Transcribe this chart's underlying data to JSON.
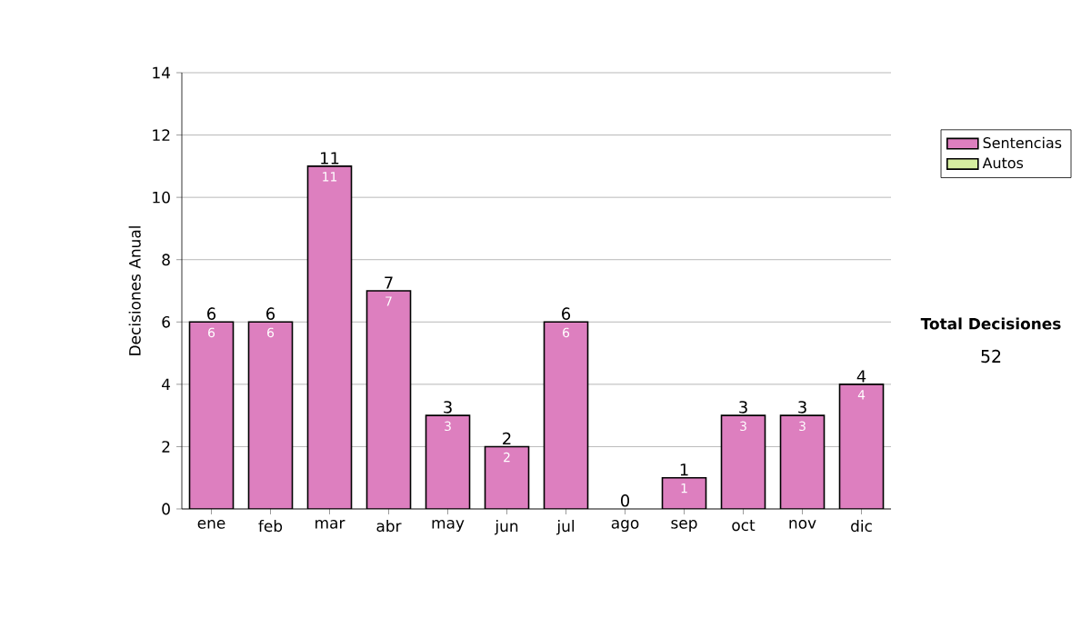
{
  "chart_data": {
    "type": "bar",
    "stacked": true,
    "ylabel": "Decisiones Anual",
    "categories": [
      "ene",
      "feb",
      "mar",
      "abr",
      "may",
      "jun",
      "jul",
      "ago",
      "sep",
      "oct",
      "nov",
      "dic"
    ],
    "series": [
      {
        "name": "Sentencias",
        "color": "#dd7fbf",
        "values": [
          6,
          6,
          11,
          7,
          3,
          2,
          6,
          0,
          1,
          3,
          3,
          4
        ],
        "value_labels": [
          "6",
          "6",
          "11",
          "7",
          "3",
          "2",
          "6",
          null,
          "1",
          "3",
          "3",
          "4"
        ]
      },
      {
        "name": "Autos",
        "color": "#d6eea0",
        "values": [
          0,
          0,
          0,
          0,
          0,
          0,
          0,
          0,
          0,
          0,
          0,
          0
        ]
      }
    ],
    "totals": [
      "6",
      "6",
      "11",
      "7",
      "3",
      "2",
      "6",
      "0",
      "1",
      "3",
      "3",
      "4"
    ],
    "ylim": [
      0,
      14
    ],
    "yticks": [
      0,
      2,
      4,
      6,
      8,
      10,
      12,
      14
    ],
    "grid": "y",
    "legend": "right",
    "annotations": [
      "Total Decisiones",
      "52"
    ]
  }
}
